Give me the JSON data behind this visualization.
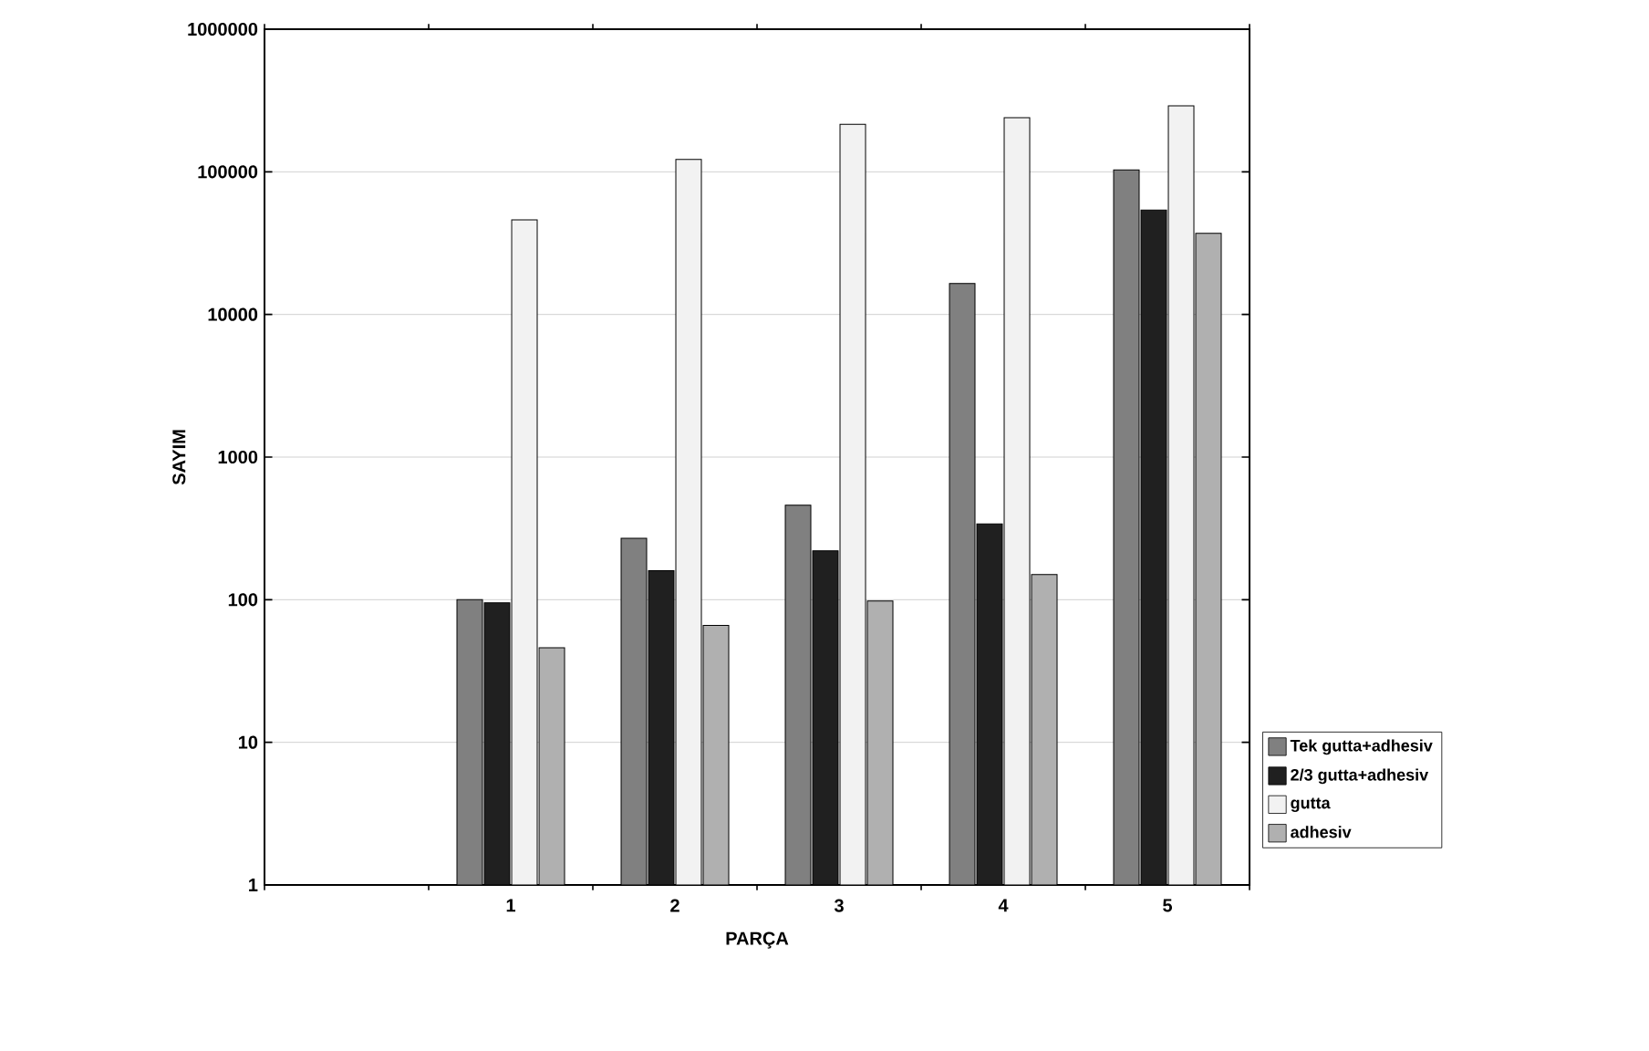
{
  "chart_data": {
    "type": "bar",
    "xlabel": "PARÇA",
    "ylabel": "SAYIM",
    "categories": [
      null,
      "1",
      "2",
      "3",
      "4",
      "5"
    ],
    "series": [
      {
        "name": "Tek gutta+adhesiv",
        "color": "#808080",
        "values": [
          null,
          100,
          270,
          460,
          16500,
          103000
        ]
      },
      {
        "name": "2/3 gutta+adhesiv",
        "color": "#202020",
        "values": [
          null,
          95,
          160,
          220,
          340,
          54000
        ]
      },
      {
        "name": "gutta",
        "color": "#f2f2f2",
        "values": [
          null,
          46000,
          122000,
          215000,
          240000,
          290000
        ]
      },
      {
        "name": "adhesiv",
        "color": "#b0b0b0",
        "values": [
          null,
          46,
          66,
          98,
          150,
          37000
        ]
      }
    ],
    "log": true,
    "ylim": [
      1,
      1000000
    ],
    "yticks": [
      1,
      10,
      100,
      1000,
      10000,
      100000,
      1000000
    ],
    "grid": "y",
    "legend": "right"
  }
}
